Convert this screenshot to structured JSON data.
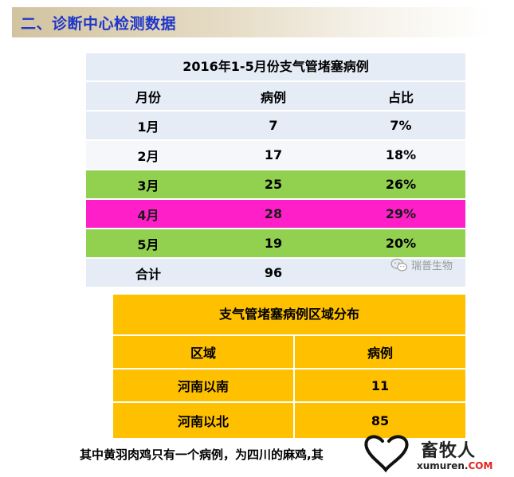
{
  "header": {
    "title": "二、诊断中心检测数据"
  },
  "table1": {
    "title": "2016年1-5月份支气管堵塞病例",
    "columns": [
      "月份",
      "病例",
      "占比"
    ],
    "rows": [
      {
        "month": "1月",
        "cases": "7",
        "ratio": "7%",
        "highlight": "none"
      },
      {
        "month": "2月",
        "cases": "17",
        "ratio": "18%",
        "highlight": "none"
      },
      {
        "month": "3月",
        "cases": "25",
        "ratio": "26%",
        "highlight": "green"
      },
      {
        "month": "4月",
        "cases": "28",
        "ratio": "29%",
        "highlight": "magenta"
      },
      {
        "month": "5月",
        "cases": "19",
        "ratio": "20%",
        "highlight": "green"
      }
    ],
    "total": {
      "label": "合计",
      "cases": "96"
    }
  },
  "watermark": {
    "text": "瑞普生物",
    "icon": "wechat-icon"
  },
  "table2": {
    "title": "支气管堵塞病例区域分布",
    "columns": [
      "区域",
      "病例"
    ],
    "rows": [
      {
        "region": "河南以南",
        "cases": "11"
      },
      {
        "region": "河南以北",
        "cases": "85"
      }
    ],
    "background": "#ffc000"
  },
  "footer_note": "其中黄羽肉鸡只有一个病例，为四川的麻鸡,其",
  "logo": {
    "text": "畜牧人",
    "url_prefix": "xumuren.",
    "url_suffix": "COM"
  },
  "colors": {
    "header_text": "#1f37c8",
    "green": "#92d050",
    "magenta": "#ff1fc8",
    "orange": "#ffc000"
  }
}
